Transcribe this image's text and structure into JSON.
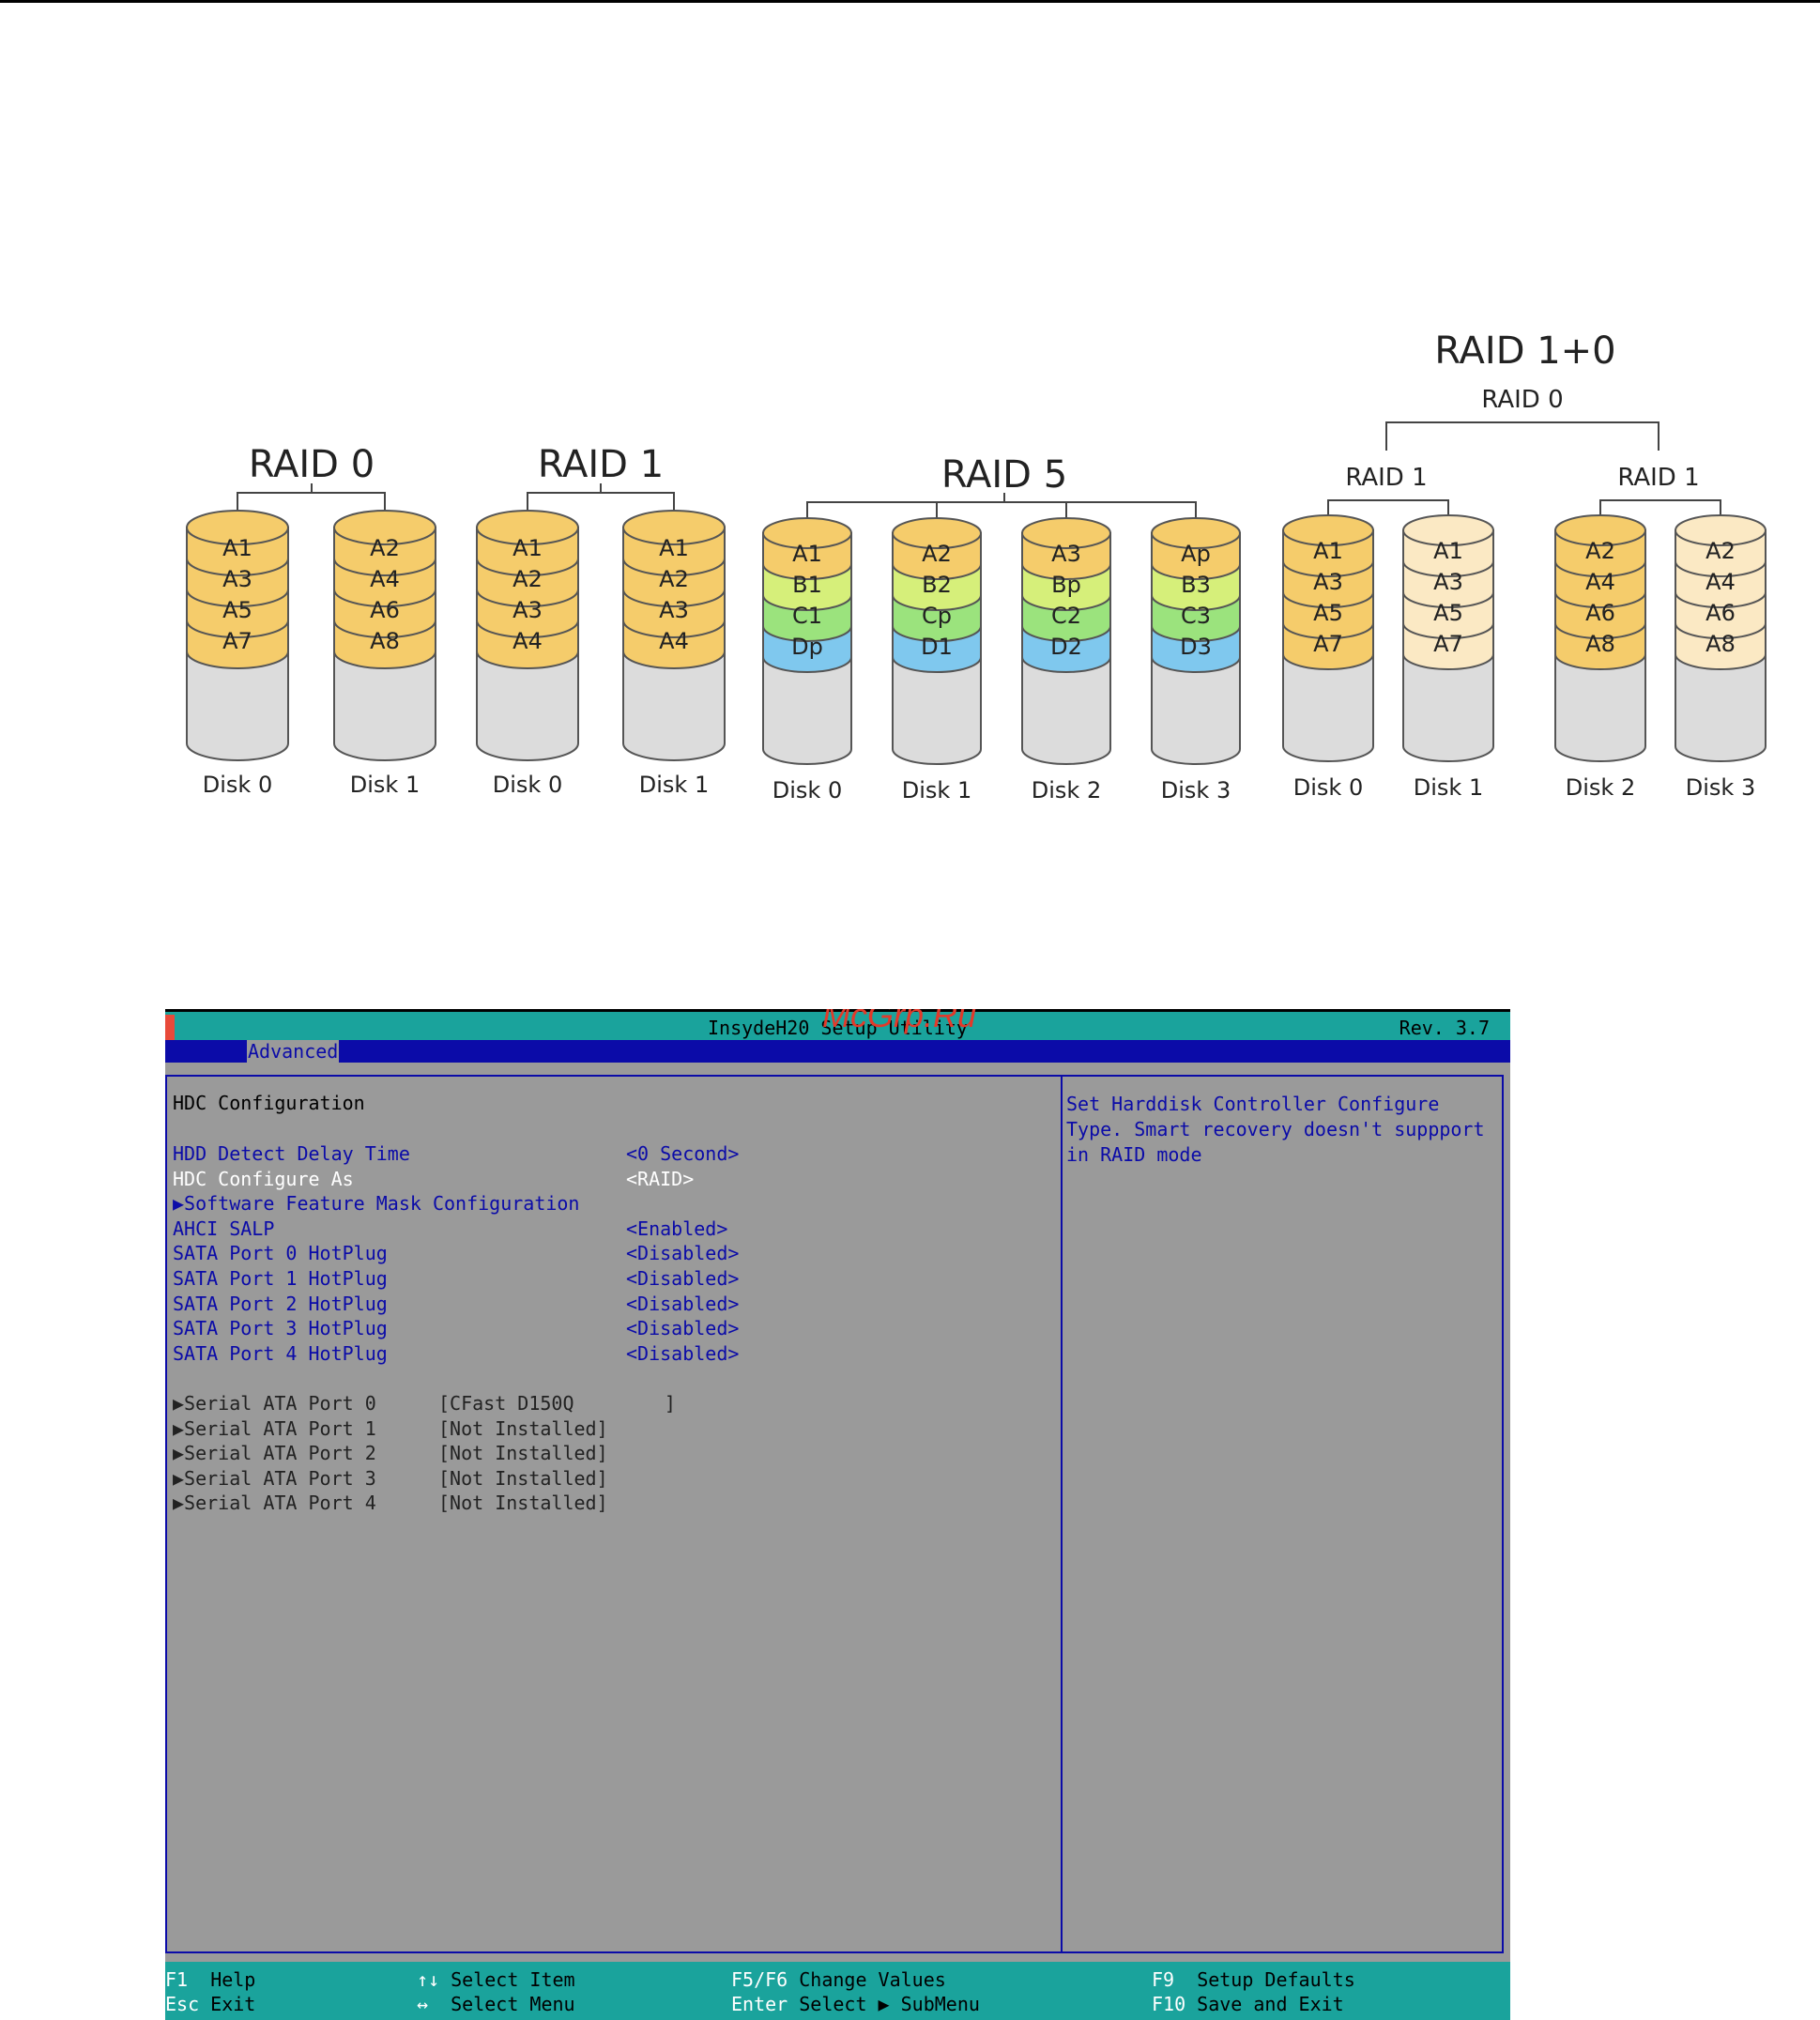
{
  "diagram": {
    "raid0": {
      "title": "RAID 0",
      "disks": [
        {
          "label": "Disk 0",
          "blocks": [
            "A1",
            "A3",
            "A5",
            "A7"
          ]
        },
        {
          "label": "Disk 1",
          "blocks": [
            "A2",
            "A4",
            "A6",
            "A8"
          ]
        }
      ]
    },
    "raid1": {
      "title": "RAID 1",
      "disks": [
        {
          "label": "Disk 0",
          "blocks": [
            "A1",
            "A2",
            "A3",
            "A4"
          ]
        },
        {
          "label": "Disk 1",
          "blocks": [
            "A1",
            "A2",
            "A3",
            "A4"
          ]
        }
      ]
    },
    "raid5": {
      "title": "RAID 5",
      "disks": [
        {
          "label": "Disk 0",
          "blocks": [
            "A1",
            "B1",
            "C1",
            "Dp"
          ]
        },
        {
          "label": "Disk 1",
          "blocks": [
            "A2",
            "B2",
            "Cp",
            "D1"
          ]
        },
        {
          "label": "Disk 2",
          "blocks": [
            "A3",
            "Bp",
            "C2",
            "D2"
          ]
        },
        {
          "label": "Disk 3",
          "blocks": [
            "Ap",
            "B3",
            "C3",
            "D3"
          ]
        }
      ]
    },
    "raid10": {
      "title": "RAID 1+0",
      "subtitle": "RAID 0",
      "group_label": "RAID 1",
      "disks": [
        {
          "label": "Disk 0",
          "blocks": [
            "A1",
            "A3",
            "A5",
            "A7"
          ]
        },
        {
          "label": "Disk 1",
          "blocks": [
            "A1",
            "A3",
            "A5",
            "A7"
          ]
        },
        {
          "label": "Disk 2",
          "blocks": [
            "A2",
            "A4",
            "A6",
            "A8"
          ]
        },
        {
          "label": "Disk 3",
          "blocks": [
            "A2",
            "A4",
            "A6",
            "A8"
          ]
        }
      ]
    },
    "colors": {
      "a": "#f5cc6b",
      "a_light": "#fbe9c4",
      "b": "#d6ef7a",
      "c": "#9be37d",
      "d": "#7fc8ee",
      "disk": "#dcdcdc"
    }
  },
  "bios": {
    "title": "InsydeH20 Setup Utility",
    "rev": "Rev. 3.7",
    "watermark": "McGrp.Ru",
    "tab": "Advanced",
    "section_title": "HDC Configuration",
    "settings": [
      {
        "label": "HDD Detect Delay Time",
        "value": "<0 Second>"
      },
      {
        "label": "HDC Configure As",
        "value": "<RAID>"
      },
      {
        "label": "▶Software Feature Mask Configuration",
        "value": ""
      },
      {
        "label": "AHCI SALP",
        "value": "<Enabled>"
      },
      {
        "label": "SATA Port 0 HotPlug",
        "value": "<Disabled>"
      },
      {
        "label": "SATA Port 1 HotPlug",
        "value": "<Disabled>"
      },
      {
        "label": "SATA Port 2 HotPlug",
        "value": "<Disabled>"
      },
      {
        "label": "SATA Port 3 HotPlug",
        "value": "<Disabled>"
      },
      {
        "label": "SATA Port 4 HotPlug",
        "value": "<Disabled>"
      }
    ],
    "ports": [
      {
        "label": "▶Serial ATA Port 0",
        "value": "[CFast D150Q        ]"
      },
      {
        "label": "▶Serial ATA Port 1",
        "value": "[Not Installed]"
      },
      {
        "label": "▶Serial ATA Port 2",
        "value": "[Not Installed]"
      },
      {
        "label": "▶Serial ATA Port 3",
        "value": "[Not Installed]"
      },
      {
        "label": "▶Serial ATA Port 4",
        "value": "[Not Installed]"
      }
    ],
    "help": "Set Harddisk Controller Configure Type. Smart recovery doesn't suppport in RAID mode",
    "footer": {
      "f1": "F1",
      "f1_desc": "Help",
      "esc": "Esc",
      "esc_desc": "Exit",
      "updown": "↑↓",
      "updown_desc": "Select Item",
      "leftright": "↔",
      "leftright_desc": "Select Menu",
      "f5f6": "F5/F6",
      "f5f6_desc": "Change Values",
      "enter": "Enter",
      "enter_desc": "Select ▶ SubMenu",
      "f9": "F9",
      "f9_desc": "Setup Defaults",
      "f10": "F10",
      "f10_desc": "Save and Exit"
    }
  }
}
